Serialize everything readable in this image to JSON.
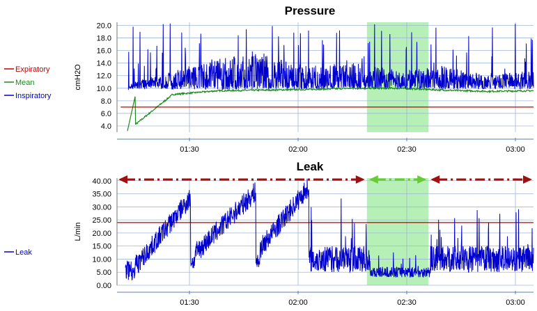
{
  "colors": {
    "expiratory": "#c00000",
    "mean": "#1a8a1a",
    "inspiratory": "#0000cc",
    "leak": "#0000cc",
    "highlight": "#b7f0b7",
    "arrow_red": "#a01010",
    "arrow_green": "#66cc33",
    "grid": "#9fb6d6"
  },
  "chart_data": [
    {
      "type": "line",
      "title": "Pressure",
      "ylabel": "cmH2O",
      "xlabel": "",
      "ylim": [
        3,
        20.5
      ],
      "yticks": [
        "20.0",
        "18.0",
        "16.0",
        "14.0",
        "12.0",
        "10.0",
        "8.0",
        "6.0",
        "4.0"
      ],
      "xticks": [
        "01:30",
        "02:00",
        "02:30",
        "03:00"
      ],
      "x_range": [
        "01:10",
        "03:05"
      ],
      "highlight_range": [
        "02:19",
        "02:36"
      ],
      "grid": true,
      "legend": "left",
      "series": [
        {
          "name": "Expiratory",
          "values": [
            7.0,
            7.0
          ]
        },
        {
          "name": "Mean",
          "values": [
            3.2,
            9.0,
            9.6,
            9.7,
            9.8,
            10.0,
            10.0,
            9.7,
            9.5,
            9.6
          ]
        },
        {
          "name": "Inspiratory",
          "values": [
            10.5,
            12.0,
            13.5,
            14.0,
            12.5,
            13.0,
            12.0,
            12.5,
            11.5,
            12.0
          ]
        }
      ]
    },
    {
      "type": "line",
      "title": "Leak",
      "ylabel": "L/min",
      "xlabel": "",
      "ylim": [
        0,
        41
      ],
      "yticks": [
        "40.00",
        "35.00",
        "30.00",
        "25.00",
        "20.00",
        "15.00",
        "10.00",
        "5.00",
        "0.00"
      ],
      "xticks": [
        "01:30",
        "02:00",
        "02:30",
        "03:00"
      ],
      "x_range": [
        "01:10",
        "03:05"
      ],
      "highlight_range": [
        "02:19",
        "02:36"
      ],
      "threshold": 24,
      "grid": true,
      "legend": "left",
      "series": [
        {
          "name": "Leak",
          "values": [
            5,
            25,
            30,
            15,
            30,
            35,
            40,
            12,
            10,
            4,
            4,
            15
          ]
        }
      ]
    }
  ]
}
